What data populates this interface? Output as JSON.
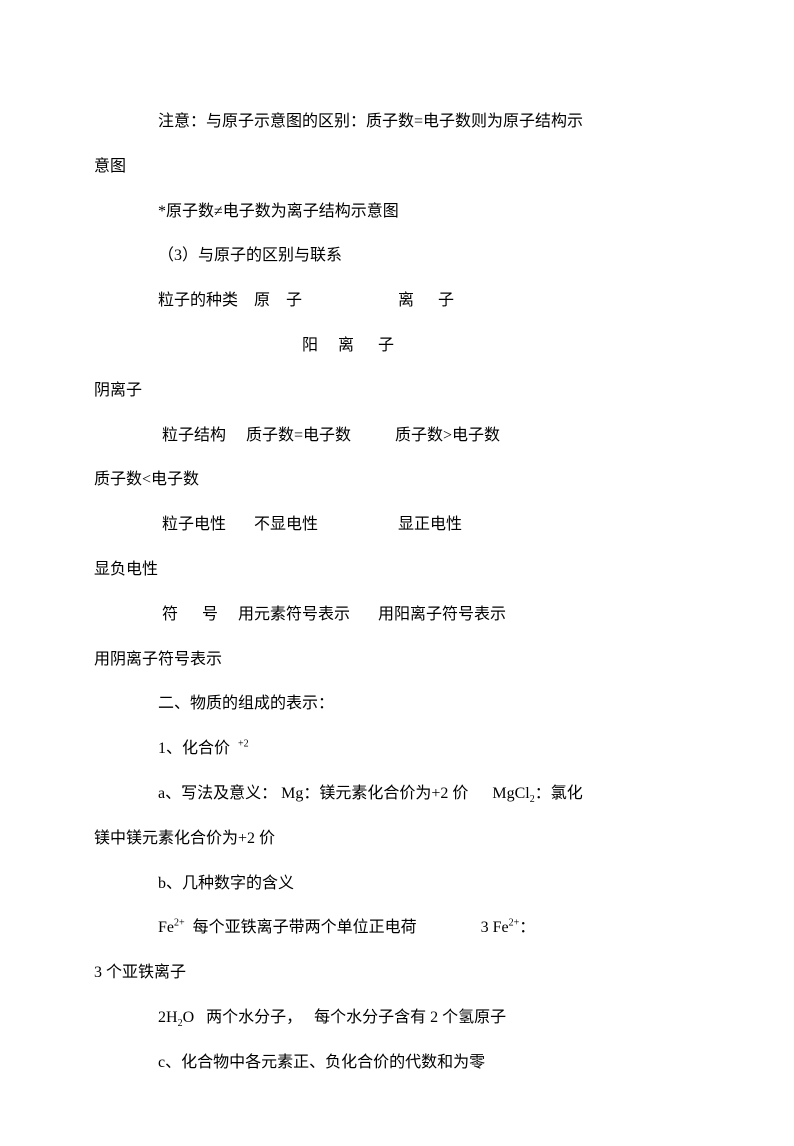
{
  "lines": {
    "l1": "注意：与原子示意图的区别：质子数=电子数则为原子结构示",
    "l2": "意图",
    "l3": "*原子数≠电子数为离子结构示意图",
    "l4": "（3）与原子的区别与联系",
    "l5": "粒子的种类    原    子                        离      子",
    "l6": "                                    阳     离      子         ",
    "l7": "阴离子",
    "l8": " 粒子结构     质子数=电子数           质子数>电子数          ",
    "l9": "质子数<电子数",
    "l10": " 粒子电性       不显电性                    显正电性           ",
    "l11": "显负电性",
    "l12": " 符      号     用元素符号表示       用阳离子符号表示    ",
    "l13": "用阴离子符号表示",
    "l14": "二、物质的组成的表示：",
    "l15a": "1、化合价  ",
    "l15b": "+2",
    "l16a": "a、写法及意义： Mg：镁元素化合价为+2 价      MgCl",
    "l16b": "2",
    "l16c": "：氯化",
    "l17": "镁中镁元素化合价为+2 价",
    "l18": "b、几种数字的含义",
    "l19a": "Fe",
    "l19b": "2+",
    "l19c": "  每个亚铁离子带两个单位正电荷                3 Fe",
    "l19d": "2+",
    "l19e": "：",
    "l20": "3 个亚铁离子",
    "l21a": "2H",
    "l21b": "2",
    "l21c": "O   两个水分子，   每个水分子含有 2 个氢原子",
    "l22": "c、化合物中各元素正、负化合价的代数和为零"
  }
}
